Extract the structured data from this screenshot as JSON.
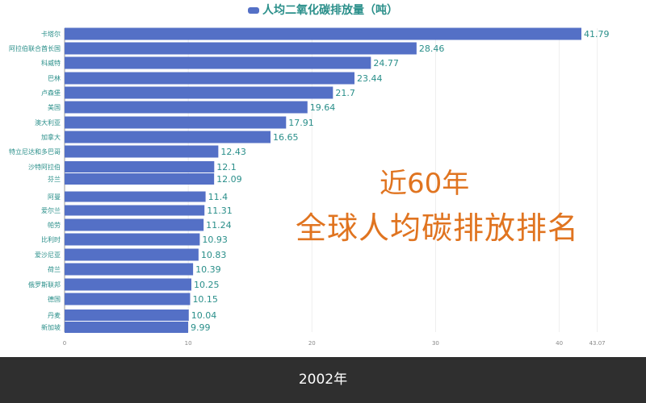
{
  "chart_data": {
    "type": "bar",
    "orientation": "horizontal",
    "legend": "人均二氧化碳排放量（吨）",
    "legend_placement": "top",
    "bar_color": "#5470c6",
    "label_color": "#2a8f8a",
    "xlim": [
      0,
      43.07
    ],
    "ticks": [
      "0",
      "10",
      "20",
      "30",
      "40",
      "43.07"
    ],
    "tick_values": [
      0,
      10,
      20,
      30,
      40,
      43.07
    ],
    "grid": true,
    "categories": [
      "卡塔尔",
      "阿拉伯联合酋长国",
      "科威特",
      "巴林",
      "卢森堡",
      "美国",
      "澳大利亚",
      "加拿大",
      "特立尼达和多巴哥",
      "沙特阿拉伯",
      "芬兰",
      "阿曼",
      "爱尔兰",
      "帕劳",
      "比利时",
      "爱沙尼亚",
      "荷兰",
      "俄罗斯联邦",
      "德国",
      "丹麦",
      "新加坡"
    ],
    "values": [
      41.79,
      28.46,
      24.77,
      23.44,
      21.7,
      19.64,
      17.91,
      16.65,
      12.43,
      12.1,
      12.09,
      11.4,
      11.31,
      11.24,
      10.93,
      10.83,
      10.39,
      10.25,
      10.15,
      10.04,
      9.99
    ]
  },
  "overlay": {
    "line1": "近60年",
    "line2": "全球人均碳排放排名",
    "color": "#e07420"
  },
  "footer": {
    "year": "2002年"
  }
}
